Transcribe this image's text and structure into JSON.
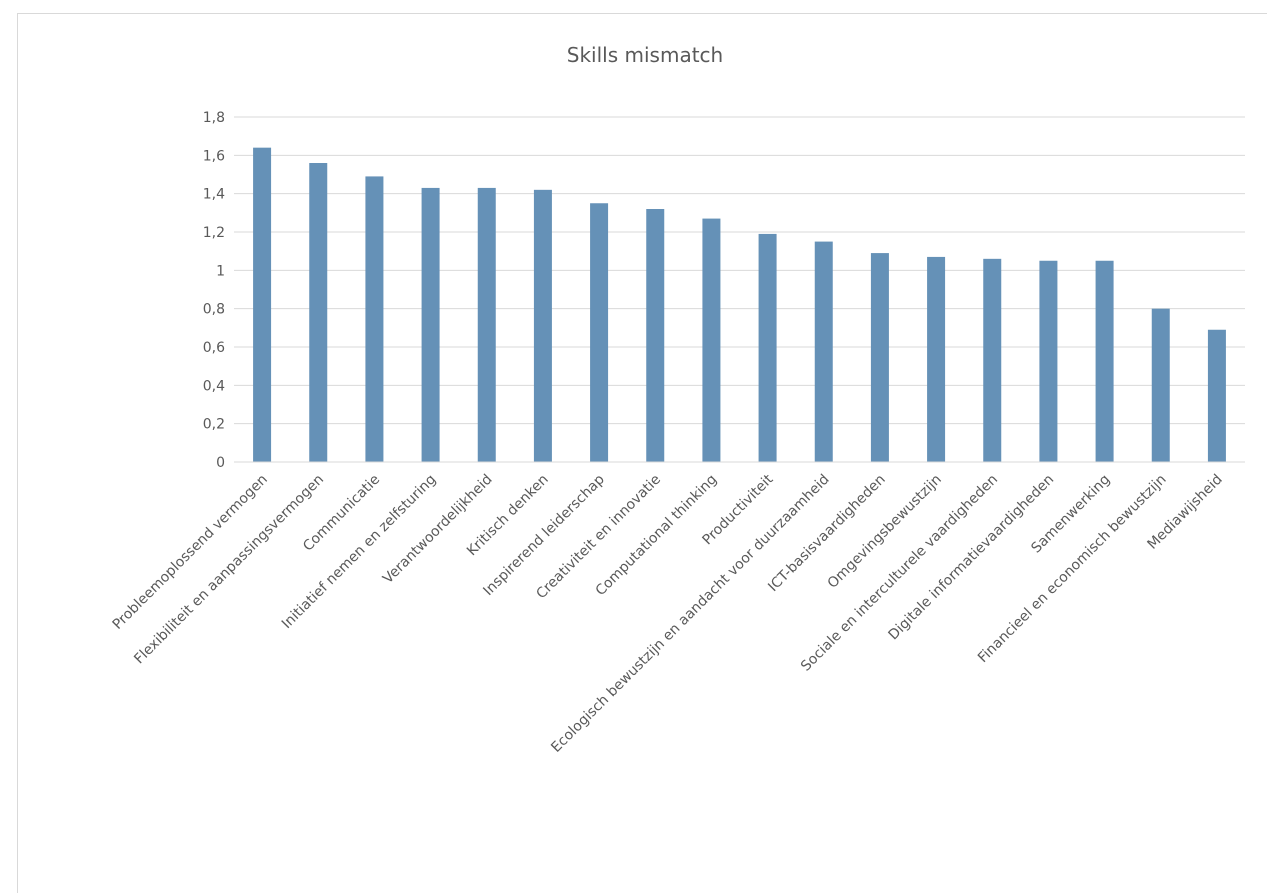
{
  "chart_data": {
    "type": "bar",
    "title": "Skills mismatch",
    "xlabel": "",
    "ylabel": "",
    "ylim": [
      0,
      1.8
    ],
    "ytick_step": 0.2,
    "ytick_labels": [
      "0",
      "0,2",
      "0,4",
      "0,6",
      "0,8",
      "1",
      "1,2",
      "1,4",
      "1,6",
      "1,8"
    ],
    "grid": true,
    "legend": "none",
    "bar_color": "#6591b7",
    "categories": [
      "Probleemoplossend vermogen",
      "Flexibiliteit en aanpassingsvermogen",
      "Communicatie",
      "Initiatief nemen en zelfsturing",
      "Verantwoordelijkheid",
      "Kritisch denken",
      "Inspirerend leiderschap",
      "Creativiteit en innovatie",
      "Computational thinking",
      "Productiviteit",
      "Ecologisch bewustzijn en aandacht voor duurzaamheid",
      "ICT-basisvaardigheden",
      "Omgevingsbewustzijn",
      "Sociale en interculturele vaardigheden",
      "Digitale informatievaardigheden",
      "Samenwerking",
      "Financieel en economisch bewustzijn",
      "Mediawijsheid"
    ],
    "values": [
      1.64,
      1.56,
      1.49,
      1.43,
      1.43,
      1.42,
      1.35,
      1.32,
      1.27,
      1.19,
      1.15,
      1.09,
      1.07,
      1.06,
      1.05,
      1.05,
      0.8,
      0.69
    ]
  }
}
